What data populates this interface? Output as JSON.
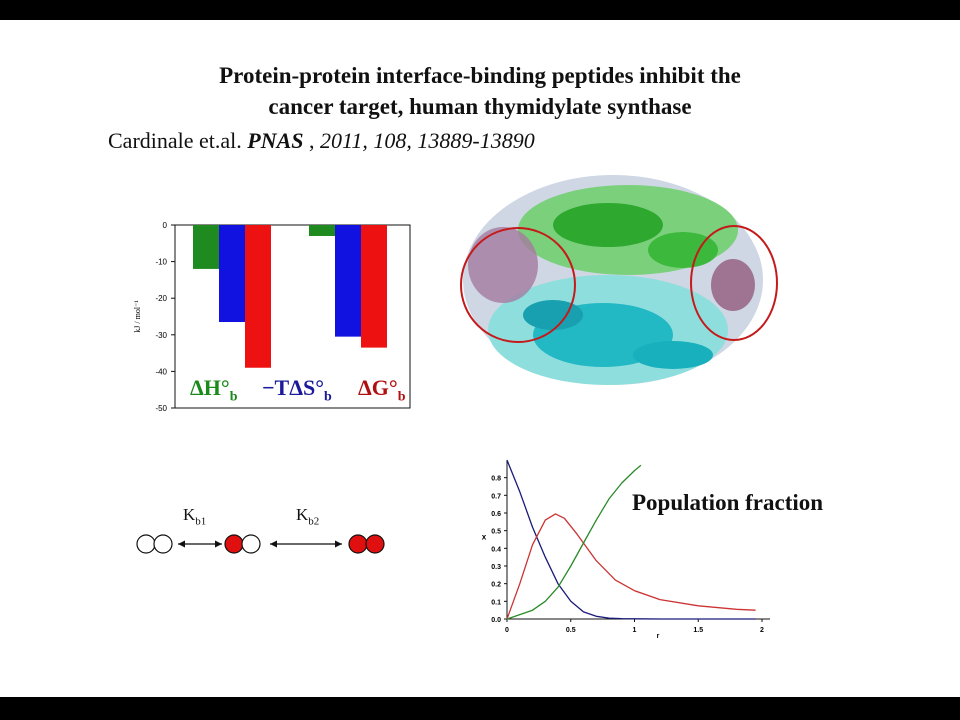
{
  "slide": {
    "title_line1": "Protein-protein interface-binding peptides inhibit the",
    "title_line2": "cancer target, human thymidylate synthase",
    "citation": {
      "authors": "Cardinale et.al.",
      "journal": "PNAS",
      "sep": " , ",
      "details": "2011, 108, 13889-13890"
    },
    "population_label": "Population fraction",
    "scheme": {
      "kb1_main": "K",
      "kb1_sub": "b1",
      "kb2_main": "K",
      "kb2_sub": "b2"
    },
    "thermo_labels": [
      {
        "main": "ΔH°",
        "sub": "b",
        "color": "#1a8a1a"
      },
      {
        "main": "−TΔS°",
        "sub": "b",
        "color": "#1a1a9a"
      },
      {
        "main": "ΔG°",
        "sub": "b",
        "color": "#b01010"
      }
    ]
  },
  "chart_data": [
    {
      "type": "bar",
      "ylabel": "kJ / mol⁻¹",
      "ylim": [
        -50,
        0
      ],
      "yticks": [
        "0",
        "-10",
        "-20",
        "-30",
        "-40",
        "-50"
      ],
      "groups": 2,
      "series": [
        {
          "name": "ΔH°b",
          "color": "#1f8a1f",
          "values": [
            -12,
            -3
          ]
        },
        {
          "name": "−TΔS°b",
          "color": "#1212e0",
          "values": [
            -26.5,
            -30.5
          ]
        },
        {
          "name": "ΔG°b",
          "color": "#ee1111",
          "values": [
            -39,
            -33.5
          ]
        }
      ]
    },
    {
      "type": "line",
      "xlabel": "r",
      "ylabel": "x",
      "xlim": [
        0,
        2
      ],
      "ylim": [
        0,
        0.9
      ],
      "xticks": [
        "0",
        "0.5",
        "1",
        "1.5",
        "2"
      ],
      "yticks": [
        "0.0",
        "0.1",
        "0.2",
        "0.3",
        "0.4",
        "0.5",
        "0.6",
        "0.7",
        "0.8"
      ],
      "series": [
        {
          "color": "#1a1a7a",
          "x": [
            0,
            0.1,
            0.2,
            0.3,
            0.4,
            0.5,
            0.6,
            0.7,
            0.8,
            0.9,
            1.0,
            1.2,
            1.5,
            1.95
          ],
          "y": [
            0.9,
            0.72,
            0.52,
            0.35,
            0.2,
            0.1,
            0.04,
            0.015,
            0.005,
            0.002,
            0.001,
            0.0,
            0.0,
            0.0
          ]
        },
        {
          "color": "#cc3333",
          "x": [
            0,
            0.1,
            0.2,
            0.3,
            0.38,
            0.45,
            0.55,
            0.7,
            0.85,
            1.0,
            1.2,
            1.5,
            1.8,
            1.95
          ],
          "y": [
            0.0,
            0.2,
            0.42,
            0.56,
            0.595,
            0.57,
            0.48,
            0.33,
            0.22,
            0.16,
            0.11,
            0.075,
            0.055,
            0.05
          ]
        },
        {
          "color": "#2a8a2a",
          "x": [
            0,
            0.2,
            0.3,
            0.4,
            0.5,
            0.6,
            0.7,
            0.8,
            0.9,
            1.0,
            1.05
          ],
          "y": [
            0.0,
            0.05,
            0.1,
            0.18,
            0.3,
            0.43,
            0.56,
            0.68,
            0.77,
            0.84,
            0.87
          ]
        }
      ]
    }
  ]
}
